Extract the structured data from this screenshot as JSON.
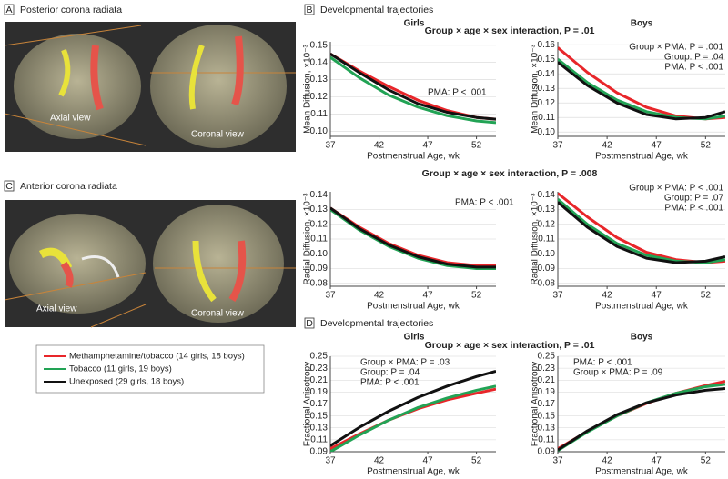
{
  "panels": [
    {
      "letter": "A",
      "title": "Posterior corona radiata",
      "views": [
        "Axial view",
        "Coronal view"
      ]
    },
    {
      "letter": "C",
      "title": "Anterior corona radiata",
      "views": [
        "Axial view",
        "Coronal view"
      ]
    }
  ],
  "sections": [
    {
      "letter": "B",
      "title": "Developmental trajectories",
      "interaction": "Group × age × sex interaction, P = .01"
    },
    {
      "interaction": "Group × age × sex interaction, P = .008"
    },
    {
      "letter": "D",
      "title": "Developmental trajectories",
      "interaction": "Group × age × sex interaction, P = .01"
    }
  ],
  "chart_data": [
    {
      "type": "line",
      "title": "Girls",
      "xlabel": "Postmenstrual Age, wk",
      "ylabel": "Mean Diffusion, ×10⁻³",
      "annotations": [
        "PMA: P < .001"
      ],
      "x": [
        37,
        40,
        43,
        46,
        49,
        52,
        54
      ],
      "xlim": [
        37,
        54
      ],
      "xticks": [
        37,
        42,
        47,
        52
      ],
      "ylim": [
        0.097,
        0.152
      ],
      "yticks": [
        {
          "value": 0.1,
          "label": "0.10"
        },
        0.11,
        0.12,
        0.13,
        0.14,
        0.15
      ],
      "grid": true,
      "series": [
        {
          "name": "Methamphetamine/tobacco (14 girls, 18 boys)",
          "color": "#e8262a",
          "values": [
            0.145,
            0.135,
            0.126,
            0.118,
            0.112,
            0.108,
            0.107
          ]
        },
        {
          "name": "Tobacco (11 girls, 19 boys)",
          "color": "#22a355",
          "values": [
            0.143,
            0.131,
            0.121,
            0.114,
            0.109,
            0.106,
            0.105
          ]
        },
        {
          "name": "Unexposed (29 girls, 18 boys)",
          "color": "#111111",
          "values": [
            0.145,
            0.134,
            0.124,
            0.116,
            0.111,
            0.108,
            0.107
          ]
        }
      ]
    },
    {
      "type": "line",
      "title": "Boys",
      "xlabel": "Postmenstrual Age, wk",
      "ylabel": "Mean Diffusion, ×10⁻³",
      "annotations": [
        "Group × PMA: P = .001",
        "Group: P = .04",
        "PMA: P < .001"
      ],
      "x": [
        37,
        40,
        43,
        46,
        49,
        52,
        54
      ],
      "xlim": [
        37,
        54
      ],
      "xticks": [
        37,
        42,
        47,
        52
      ],
      "ylim": [
        0.097,
        0.162
      ],
      "yticks": [
        {
          "value": 0.1,
          "label": "0.10"
        },
        0.11,
        0.12,
        0.13,
        0.14,
        0.15,
        0.16
      ],
      "grid": true,
      "series": [
        {
          "color": "#e8262a",
          "values": [
            0.158,
            0.141,
            0.127,
            0.117,
            0.111,
            0.109,
            0.11
          ]
        },
        {
          "color": "#22a355",
          "values": [
            0.15,
            0.134,
            0.122,
            0.114,
            0.11,
            0.109,
            0.111
          ]
        },
        {
          "color": "#111111",
          "values": [
            0.148,
            0.132,
            0.12,
            0.112,
            0.109,
            0.11,
            0.114
          ]
        }
      ]
    },
    {
      "type": "line",
      "title": null,
      "xlabel": "Postmenstrual Age, wk",
      "ylabel": "Radial Diffusion, ×10⁻³",
      "annotations": [
        "PMA: P < .001"
      ],
      "x": [
        37,
        40,
        43,
        46,
        49,
        52,
        54
      ],
      "xlim": [
        37,
        54
      ],
      "xticks": [
        37,
        42,
        47,
        52
      ],
      "ylim": [
        0.078,
        0.142
      ],
      "yticks": [
        0.08,
        0.09,
        {
          "value": 0.1,
          "label": "0.10"
        },
        0.11,
        0.12,
        0.13,
        0.14
      ],
      "grid": true,
      "series": [
        {
          "color": "#e8262a",
          "values": [
            0.131,
            0.118,
            0.107,
            0.099,
            0.094,
            0.092,
            0.092
          ]
        },
        {
          "color": "#22a355",
          "values": [
            0.13,
            0.116,
            0.105,
            0.097,
            0.092,
            0.09,
            0.09
          ]
        },
        {
          "color": "#111111",
          "values": [
            0.131,
            0.117,
            0.106,
            0.098,
            0.093,
            0.091,
            0.091
          ]
        }
      ]
    },
    {
      "type": "line",
      "title": null,
      "xlabel": "Postmenstrual Age, wk",
      "ylabel": "Radial Diffusion, ×10⁻³",
      "annotations": [
        "Group × PMA: P < .001",
        "Group: P = .07",
        "PMA: P < .001"
      ],
      "x": [
        37,
        40,
        43,
        46,
        49,
        52,
        54
      ],
      "xlim": [
        37,
        54
      ],
      "xticks": [
        37,
        42,
        47,
        52
      ],
      "ylim": [
        0.078,
        0.142
      ],
      "yticks": [
        0.08,
        0.09,
        {
          "value": 0.1,
          "label": "0.10"
        },
        0.11,
        0.12,
        0.13,
        0.14
      ],
      "grid": true,
      "series": [
        {
          "color": "#e8262a",
          "values": [
            0.141,
            0.125,
            0.111,
            0.101,
            0.096,
            0.094,
            0.095
          ]
        },
        {
          "color": "#22a355",
          "values": [
            0.137,
            0.12,
            0.107,
            0.099,
            0.095,
            0.094,
            0.096
          ]
        },
        {
          "color": "#111111",
          "values": [
            0.135,
            0.118,
            0.105,
            0.097,
            0.094,
            0.095,
            0.098
          ]
        }
      ]
    },
    {
      "type": "line",
      "title": "Girls",
      "xlabel": "Postmenstrual Age, wk",
      "ylabel": "Fractional Anisotropy",
      "annotations": [
        "Group × PMA: P = .03",
        "Group: P = .04",
        "PMA: P < .001"
      ],
      "x": [
        37,
        40,
        43,
        46,
        49,
        52,
        54
      ],
      "xlim": [
        37,
        54
      ],
      "xticks": [
        37,
        42,
        47,
        52
      ],
      "ylim": [
        0.09,
        0.25
      ],
      "yticks": [
        0.09,
        0.11,
        0.13,
        0.15,
        0.17,
        0.19,
        0.21,
        0.23,
        0.25
      ],
      "grid": true,
      "series": [
        {
          "color": "#e8262a",
          "values": [
            0.095,
            0.12,
            0.143,
            0.162,
            0.177,
            0.188,
            0.195
          ]
        },
        {
          "color": "#22a355",
          "values": [
            0.09,
            0.118,
            0.143,
            0.164,
            0.18,
            0.193,
            0.2
          ]
        },
        {
          "color": "#111111",
          "values": [
            0.1,
            0.131,
            0.158,
            0.181,
            0.2,
            0.216,
            0.225
          ]
        }
      ]
    },
    {
      "type": "line",
      "title": "Boys",
      "xlabel": "Postmenstrual Age, wk",
      "ylabel": "Fractional Anisotropy",
      "annotations": [
        "PMA: P < .001",
        "Group × PMA: P = .09"
      ],
      "x": [
        37,
        40,
        43,
        46,
        49,
        52,
        54
      ],
      "xlim": [
        37,
        54
      ],
      "xticks": [
        37,
        42,
        47,
        52
      ],
      "ylim": [
        0.09,
        0.25
      ],
      "yticks": [
        0.09,
        0.11,
        0.13,
        0.15,
        0.17,
        0.19,
        0.21,
        0.23,
        0.25
      ],
      "grid": true,
      "series": [
        {
          "color": "#e8262a",
          "values": [
            0.095,
            0.124,
            0.15,
            0.171,
            0.188,
            0.201,
            0.208
          ]
        },
        {
          "color": "#22a355",
          "values": [
            0.092,
            0.123,
            0.15,
            0.172,
            0.188,
            0.199,
            0.203
          ]
        },
        {
          "color": "#111111",
          "values": [
            0.093,
            0.125,
            0.152,
            0.172,
            0.185,
            0.193,
            0.196
          ]
        }
      ]
    }
  ]
}
